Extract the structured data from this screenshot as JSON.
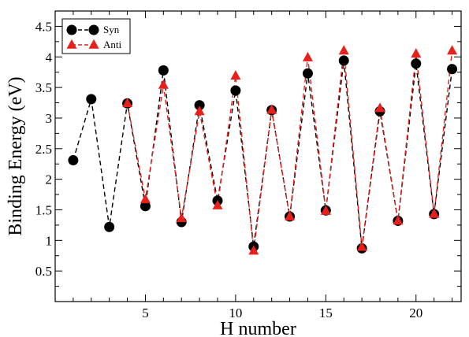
{
  "chart_data": {
    "type": "line",
    "title": "",
    "xlabel": "H number",
    "ylabel": "Binding Energy (eV)",
    "xlim": [
      0,
      22.5
    ],
    "ylim": [
      0,
      4.75
    ],
    "xticks": [
      5,
      10,
      15,
      20
    ],
    "yticks": [
      0.5,
      1,
      1.5,
      2,
      2.5,
      3,
      3.5,
      4,
      4.5
    ],
    "xtick_labels": [
      "5",
      "10",
      "15",
      "20"
    ],
    "ytick_labels": [
      "0.5",
      "1",
      "1.5",
      "2",
      "2.5",
      "3",
      "3.5",
      "4",
      "4.5"
    ],
    "grid": false,
    "legend_position": "top-left",
    "series": [
      {
        "name": "Syn",
        "color": "#000000",
        "marker": "circle",
        "line_style": "dashed",
        "x": [
          1,
          2,
          3,
          4,
          5,
          6,
          7,
          8,
          9,
          10,
          11,
          12,
          13,
          14,
          15,
          16,
          17,
          18,
          19,
          20,
          21,
          22
        ],
        "y": [
          2.31,
          3.31,
          1.22,
          3.24,
          1.56,
          3.78,
          1.3,
          3.21,
          1.65,
          3.45,
          0.9,
          3.13,
          1.39,
          3.73,
          1.49,
          3.94,
          0.87,
          3.11,
          1.32,
          3.89,
          1.43,
          3.8
        ]
      },
      {
        "name": "Anti",
        "color": "#e8201c",
        "marker": "triangle",
        "line_style": "dashed",
        "x": [
          4,
          5,
          6,
          7,
          8,
          9,
          10,
          11,
          12,
          13,
          14,
          15,
          16,
          17,
          18,
          19,
          20,
          21,
          22
        ],
        "y": [
          3.24,
          1.67,
          3.54,
          1.36,
          3.11,
          1.57,
          3.69,
          0.83,
          3.13,
          1.39,
          3.99,
          1.48,
          4.1,
          0.89,
          3.16,
          1.32,
          4.05,
          1.43,
          4.1
        ]
      }
    ]
  }
}
